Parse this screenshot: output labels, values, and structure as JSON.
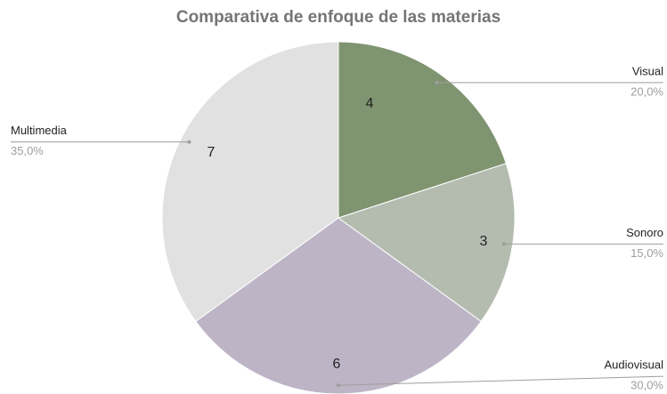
{
  "chart_data": {
    "type": "pie",
    "title": "Comparativa de enfoque de las materias",
    "categories": [
      "Visual",
      "Sonoro",
      "Audiovisual",
      "Multimedia"
    ],
    "values": [
      4,
      3,
      6,
      7
    ],
    "percent_labels": [
      "20,0%",
      "15,0%",
      "30,0%",
      "35,0%"
    ],
    "colors": [
      "#7f9470",
      "#b4bcb0",
      "#bdb5c6",
      "#e1e1e1"
    ]
  }
}
